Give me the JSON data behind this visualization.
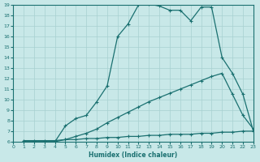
{
  "xlabel": "Humidex (Indice chaleur)",
  "bg_color": "#c8e8e8",
  "line_color": "#1a7070",
  "grid_color": "#a8d0d0",
  "xlim": [
    0,
    23
  ],
  "ylim": [
    6,
    19
  ],
  "xticks": [
    0,
    1,
    2,
    3,
    4,
    5,
    6,
    7,
    8,
    9,
    10,
    11,
    12,
    13,
    14,
    15,
    16,
    17,
    18,
    19,
    20,
    21,
    22,
    23
  ],
  "yticks": [
    6,
    7,
    8,
    9,
    10,
    11,
    12,
    13,
    14,
    15,
    16,
    17,
    18,
    19
  ],
  "curve1_x": [
    1,
    2,
    3,
    4,
    5,
    6,
    7,
    8,
    9,
    10,
    11,
    12,
    13,
    14,
    15,
    16,
    17,
    18,
    19,
    20,
    21,
    22,
    23
  ],
  "curve1_y": [
    6.0,
    6.0,
    6.0,
    6.0,
    7.5,
    8.2,
    8.5,
    9.8,
    11.3,
    16.0,
    17.2,
    19.0,
    19.1,
    18.9,
    18.5,
    18.5,
    17.5,
    18.8,
    18.8,
    14.0,
    12.5,
    10.5,
    7.0
  ],
  "curve2_x": [
    1,
    2,
    3,
    4,
    5,
    6,
    7,
    8,
    9,
    10,
    11,
    12,
    13,
    14,
    15,
    16,
    17,
    18,
    19,
    20,
    21,
    22,
    23
  ],
  "curve2_y": [
    6.0,
    6.0,
    6.0,
    6.0,
    6.2,
    6.5,
    6.8,
    7.2,
    7.8,
    8.3,
    8.8,
    9.3,
    9.8,
    10.2,
    10.6,
    11.0,
    11.4,
    11.8,
    12.2,
    12.5,
    10.5,
    8.5,
    7.2
  ],
  "curve3_x": [
    1,
    2,
    3,
    4,
    5,
    6,
    7,
    8,
    9,
    10,
    11,
    12,
    13,
    14,
    15,
    16,
    17,
    18,
    19,
    20,
    21,
    22,
    23
  ],
  "curve3_y": [
    6.1,
    6.1,
    6.1,
    6.1,
    6.2,
    6.2,
    6.3,
    6.3,
    6.4,
    6.4,
    6.5,
    6.5,
    6.6,
    6.6,
    6.7,
    6.7,
    6.7,
    6.8,
    6.8,
    6.9,
    6.9,
    7.0,
    7.0
  ]
}
